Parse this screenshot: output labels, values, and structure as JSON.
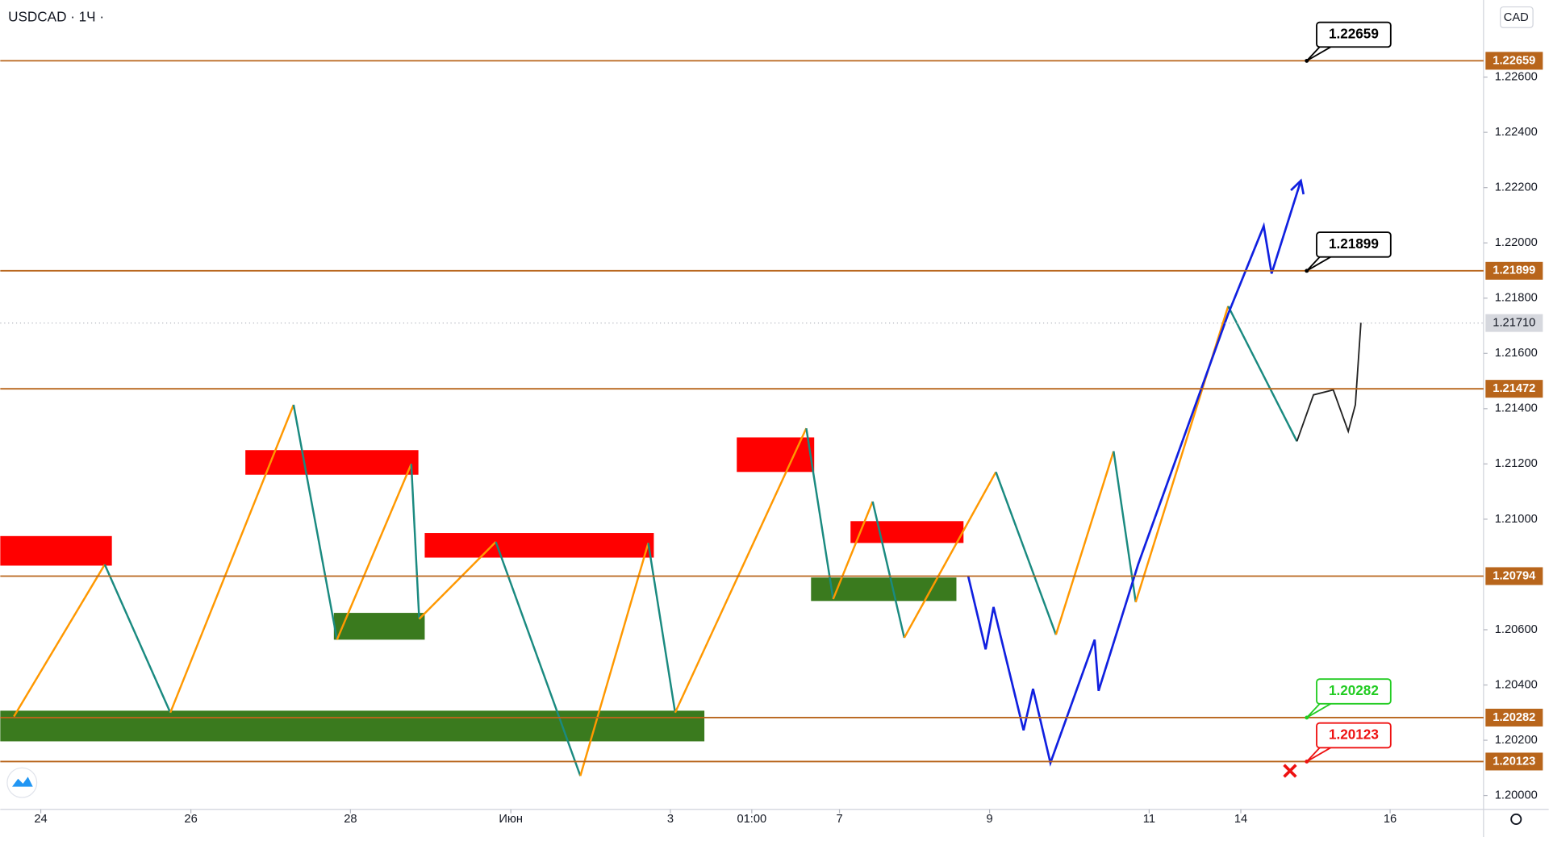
{
  "chart_data": {
    "type": "line",
    "title": "USDCAD · 1Ч ·",
    "currency_button": "CAD",
    "xlim": [
      -0.5125,
      18.2625
    ],
    "ylim": [
      1.1995,
      1.22879
    ],
    "xticks": [
      {
        "value": 0,
        "label": "24"
      },
      {
        "value": 1.9,
        "label": "26"
      },
      {
        "value": 3.92,
        "label": "28"
      },
      {
        "value": 5.95,
        "label": "Июн"
      },
      {
        "value": 7.97,
        "label": "3"
      },
      {
        "value": 9.0,
        "label": "01:00"
      },
      {
        "value": 10.11,
        "label": "7"
      },
      {
        "value": 12.01,
        "label": "9"
      },
      {
        "value": 14.03,
        "label": "11"
      },
      {
        "value": 15.19,
        "label": "14"
      },
      {
        "value": 17.08,
        "label": "16"
      }
    ],
    "yticks": [
      {
        "value": 1.2,
        "label": "1.20000"
      },
      {
        "value": 1.202,
        "label": "1.20200"
      },
      {
        "value": 1.204,
        "label": "1.20400"
      },
      {
        "value": 1.206,
        "label": "1.20600"
      },
      {
        "value": 1.21,
        "label": "1.21000"
      },
      {
        "value": 1.212,
        "label": "1.21200"
      },
      {
        "value": 1.214,
        "label": "1.21400"
      },
      {
        "value": 1.216,
        "label": "1.21600"
      },
      {
        "value": 1.218,
        "label": "1.21800"
      },
      {
        "value": 1.22,
        "label": "1.22000"
      },
      {
        "value": 1.222,
        "label": "1.22200"
      },
      {
        "value": 1.224,
        "label": "1.22400"
      },
      {
        "value": 1.226,
        "label": "1.22600"
      }
    ],
    "level_color": "#b8651b",
    "levels": [
      {
        "value": 1.22659,
        "label": "1.22659",
        "callout": "1.22659",
        "callout_color": "#000000"
      },
      {
        "value": 1.21899,
        "label": "1.21899",
        "callout": "1.21899",
        "callout_color": "#000000"
      },
      {
        "value": 1.21472,
        "label": "1.21472"
      },
      {
        "value": 1.20794,
        "label": "1.20794"
      },
      {
        "value": 1.20282,
        "label": "1.20282",
        "callout": "1.20282",
        "callout_color": "#22cc22"
      },
      {
        "value": 1.20123,
        "label": "1.20123",
        "callout": "1.20123",
        "callout_color": "#ee1111"
      }
    ],
    "current_price": {
      "value": 1.2171,
      "label": "1.21710"
    },
    "zones": [
      {
        "color": "#ff0000",
        "x": [
          -0.5125,
          0.9
        ],
        "y": [
          1.20832,
          1.20939
        ]
      },
      {
        "color": "#ff0000",
        "x": [
          2.59,
          4.78
        ],
        "y": [
          1.21161,
          1.2125
        ]
      },
      {
        "color": "#ff0000",
        "x": [
          4.86,
          7.76
        ],
        "y": [
          1.20861,
          1.2095
        ]
      },
      {
        "color": "#ff0000",
        "x": [
          8.81,
          9.79
        ],
        "y": [
          1.21171,
          1.21296
        ]
      },
      {
        "color": "#ff0000",
        "x": [
          10.25,
          11.68
        ],
        "y": [
          1.20914,
          1.20993
        ]
      },
      {
        "color": "#3a7a1e",
        "x": [
          -0.5125,
          8.4
        ],
        "y": [
          1.20196,
          1.20307
        ]
      },
      {
        "color": "#3a7a1e",
        "x": [
          3.71,
          4.86
        ],
        "y": [
          1.20564,
          1.20661
        ]
      },
      {
        "color": "#3a7a1e",
        "x": [
          9.75,
          11.59
        ],
        "y": [
          1.20704,
          1.20789
        ]
      }
    ],
    "zigzag": {
      "up_color": "#ff9800",
      "down_color": "#1a8a80",
      "x": [
        -0.34,
        0.81,
        1.64,
        3.2,
        3.75,
        4.69,
        4.79,
        5.76,
        6.83,
        7.69,
        8.03,
        9.69,
        10.03,
        10.53,
        10.93,
        12.09,
        12.85,
        13.58,
        13.86,
        15.03,
        15.9
      ],
      "values": [
        1.20286,
        1.20836,
        1.203,
        1.21414,
        1.20564,
        1.212,
        1.20639,
        1.20918,
        1.20071,
        1.20914,
        1.203,
        1.21329,
        1.20711,
        1.21064,
        1.20571,
        1.21171,
        1.20582,
        1.21246,
        1.207,
        1.21771,
        1.21282
      ]
    },
    "series": [
      {
        "name": "price",
        "color": "#222222",
        "x": [
          15.9,
          16.11,
          16.36,
          16.55,
          16.64,
          16.71
        ],
        "values": [
          1.21282,
          1.2145,
          1.21468,
          1.21318,
          1.21414,
          1.21711
        ]
      },
      {
        "name": "projection",
        "color": "#1020e0",
        "x": [
          11.74,
          11.96,
          12.06,
          12.44,
          12.56,
          12.78,
          13.34,
          13.39,
          13.89,
          15.03,
          15.48,
          15.58,
          15.95
        ],
        "values": [
          1.20793,
          1.20529,
          1.20682,
          1.20236,
          1.20386,
          1.20118,
          1.20564,
          1.20379,
          1.20836,
          1.21743,
          1.22061,
          1.21889,
          1.22225
        ]
      }
    ]
  }
}
